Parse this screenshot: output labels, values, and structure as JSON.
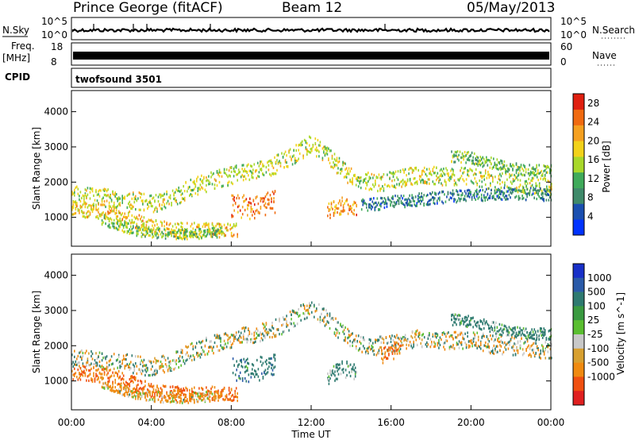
{
  "header": {
    "site": "Prince George (fitACF)",
    "beam": "Beam 12",
    "date": "05/May/2013"
  },
  "strip_nsky": {
    "left_label": "N.Sky",
    "right_label": "N.Search",
    "left_ticks": [
      "10^5",
      "10^0"
    ],
    "right_ticks": [
      "10^5",
      "10^0"
    ]
  },
  "strip_freq": {
    "left_label_line1": "Freq.",
    "left_label_line2": "[MHz]",
    "right_label": "Nave",
    "left_ticks": [
      "18",
      "8"
    ],
    "right_ticks": [
      "60",
      "0"
    ]
  },
  "cpid": {
    "label": "CPID",
    "value": "twofsound 3501"
  },
  "colors": {
    "power_scale": [
      "#0033ff",
      "#1a4fb0",
      "#3f8a6a",
      "#3faa5a",
      "#a8d82a",
      "#f2d21a",
      "#f5a020",
      "#f06a10",
      "#e02010"
    ],
    "velocity_scale": [
      "#1830c8",
      "#2a5aa8",
      "#2e7a70",
      "#3a9a40",
      "#5abe30",
      "#c8c8c8",
      "#d8a030",
      "#f08a10",
      "#f05010",
      "#e02020"
    ]
  },
  "chart_data": {
    "type": "heatmap",
    "x_axis": {
      "label": "Time UT",
      "ticks": [
        "00:00",
        "04:00",
        "08:00",
        "12:00",
        "16:00",
        "20:00",
        "00:00"
      ],
      "range_hours": [
        0,
        24
      ]
    },
    "power_panel": {
      "ylabel": "Slant Range [km]",
      "yticks": [
        1000,
        2000,
        3000,
        4000
      ],
      "ylim": [
        180,
        4600
      ],
      "colorbar_label": "Power [dB]",
      "colorbar_ticks": [
        4,
        8,
        12,
        16,
        20,
        24,
        28
      ],
      "colorbar_range": [
        0,
        30
      ],
      "bands": [
        {
          "t": [
            0.0,
            1.0,
            2.0,
            3.0,
            4.0,
            5.0,
            6.0,
            7.0,
            8.0,
            9.0,
            10.0,
            11.0,
            12.0,
            13.0,
            14.0,
            15.0,
            16.0,
            17.0,
            18.0,
            19.0,
            20.0,
            21.0,
            22.0,
            23.0,
            24.0
          ],
          "r": [
            1600,
            1550,
            1500,
            1450,
            1350,
            1500,
            1800,
            2000,
            2150,
            2300,
            2400,
            2700,
            3050,
            2600,
            2100,
            1950,
            2000,
            2150,
            2150,
            2100,
            2150,
            2000,
            1950,
            1900,
            1800
          ],
          "w": 320,
          "p": 16,
          "start": 0,
          "end": 24
        },
        {
          "t": [
            0.0,
            1.0,
            2.0,
            3.0,
            4.0,
            5.0,
            6.0,
            7.0,
            8.0
          ],
          "r": [
            1200,
            1150,
            1100,
            900,
            700,
            600,
            600,
            600,
            600
          ],
          "w": 260,
          "p": 19,
          "start": 0,
          "end": 8.3
        },
        {
          "t": [
            1.5,
            2.5,
            3.5,
            4.5,
            5.5,
            6.5,
            7.5
          ],
          "r": [
            900,
            700,
            550,
            500,
            480,
            500,
            550
          ],
          "w": 180,
          "p": 14,
          "start": 1.5,
          "end": 7.5
        },
        {
          "t": [
            8.0,
            9.0,
            10.0
          ],
          "r": [
            1300,
            1250,
            1400
          ],
          "w": 420,
          "p": 24,
          "start": 8.0,
          "end": 10.2
        },
        {
          "t": [
            12.8,
            13.5,
            14.3
          ],
          "r": [
            1100,
            1300,
            1250
          ],
          "w": 300,
          "p": 22,
          "start": 12.8,
          "end": 14.3
        },
        {
          "t": [
            14.5,
            16.0,
            18.0,
            20.0,
            22.0,
            24.0
          ],
          "r": [
            1300,
            1400,
            1500,
            1600,
            1650,
            1600
          ],
          "w": 220,
          "p": 8,
          "start": 14.5,
          "end": 24
        },
        {
          "t": [
            19.0,
            20.0,
            21.0,
            22.0,
            23.0,
            24.0
          ],
          "r": [
            2700,
            2650,
            2500,
            2350,
            2300,
            2300
          ],
          "w": 200,
          "p": 13,
          "start": 19.0,
          "end": 24
        }
      ]
    },
    "velocity_panel": {
      "ylabel": "Slant Range [km]",
      "yticks": [
        1000,
        2000,
        3000,
        4000
      ],
      "ylim": [
        180,
        4600
      ],
      "colorbar_label": "Velocity [m s^-1]",
      "colorbar_ticks": [
        1000,
        500,
        100,
        25,
        -25,
        -100,
        -500,
        -1000
      ],
      "bands": [
        {
          "t": [
            0.0,
            1.0,
            2.0,
            3.0,
            4.0,
            5.0,
            6.0,
            7.0,
            8.0,
            9.0,
            10.0,
            11.0,
            12.0,
            13.0,
            14.0,
            15.0,
            16.0,
            17.0,
            18.0,
            19.0,
            20.0,
            21.0,
            22.0,
            23.0,
            24.0
          ],
          "r": [
            1600,
            1550,
            1500,
            1450,
            1350,
            1500,
            1800,
            2000,
            2150,
            2300,
            2400,
            2700,
            3050,
            2600,
            2100,
            1950,
            2000,
            2150,
            2150,
            2100,
            2150,
            2000,
            1950,
            1900,
            1800
          ],
          "w": 320,
          "v": 0,
          "start": 0,
          "end": 24
        },
        {
          "t": [
            0.0,
            1.0,
            2.0,
            3.0,
            4.0,
            5.0,
            6.0,
            7.0,
            8.0
          ],
          "r": [
            1200,
            1150,
            1100,
            900,
            700,
            600,
            600,
            600,
            600
          ],
          "w": 260,
          "v": -300,
          "start": 0,
          "end": 8.3
        },
        {
          "t": [
            1.5,
            2.5,
            3.5,
            4.5,
            5.5,
            6.5,
            7.5
          ],
          "r": [
            900,
            700,
            550,
            500,
            480,
            500,
            550
          ],
          "w": 180,
          "v": -80,
          "start": 1.5,
          "end": 7.5
        },
        {
          "t": [
            8.0,
            9.0,
            10.0
          ],
          "r": [
            1300,
            1250,
            1400
          ],
          "w": 420,
          "v": 200,
          "start": 8.0,
          "end": 10.2
        },
        {
          "t": [
            12.8,
            13.5,
            14.3
          ],
          "r": [
            1100,
            1300,
            1250
          ],
          "w": 300,
          "v": 150,
          "start": 12.8,
          "end": 14.3
        },
        {
          "t": [
            15.5,
            16.5
          ],
          "r": [
            1700,
            1900
          ],
          "w": 300,
          "v": -300,
          "start": 15.5,
          "end": 16.5
        },
        {
          "t": [
            19.0,
            20.0,
            21.0,
            22.0,
            23.0,
            24.0
          ],
          "r": [
            2700,
            2650,
            2500,
            2350,
            2300,
            2300
          ],
          "w": 200,
          "v": 150,
          "start": 19.0,
          "end": 24
        }
      ]
    }
  }
}
